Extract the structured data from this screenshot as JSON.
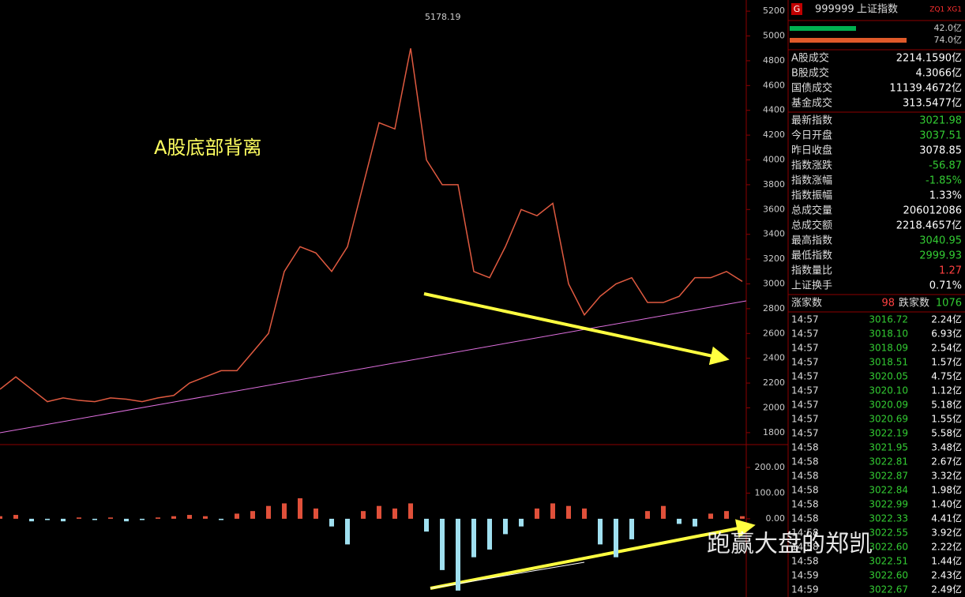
{
  "chart": {
    "annotation": "A股底部背离",
    "peak_label": "5178.19",
    "ylim": [
      1710,
      5290
    ],
    "yticks": [
      1800,
      2000,
      2200,
      2400,
      2600,
      2800,
      3000,
      3200,
      3400,
      3600,
      3800,
      4000,
      4200,
      4400,
      4600,
      4800,
      5000,
      5200
    ],
    "color": "#e05a40",
    "values": [
      2150,
      2250,
      2150,
      2050,
      2080,
      2060,
      2050,
      2080,
      2070,
      2050,
      2080,
      2100,
      2200,
      2250,
      2300,
      2300,
      2450,
      2600,
      3100,
      3300,
      3250,
      3100,
      3300,
      3800,
      4300,
      4250,
      4900,
      4000,
      3800,
      3800,
      3100,
      3050,
      3300,
      3600,
      3550,
      3650,
      3000,
      2750,
      2900,
      3000,
      3050,
      2850,
      2850,
      2900,
      3050,
      3050,
      3100,
      3020
    ]
  },
  "macd": {
    "ylim": [
      -305,
      283
    ],
    "yticks": [
      {
        "value": 0,
        "label": "0.00"
      },
      {
        "value": 100,
        "label": "100.00"
      },
      {
        "value": 200,
        "label": "200.00"
      }
    ],
    "values": [
      10,
      15,
      -10,
      -5,
      -10,
      5,
      -5,
      5,
      -10,
      -5,
      5,
      10,
      15,
      10,
      -5,
      20,
      30,
      50,
      60,
      80,
      40,
      -30,
      -100,
      30,
      50,
      40,
      60,
      -50,
      -200,
      -280,
      -150,
      -120,
      -60,
      -30,
      40,
      60,
      50,
      40,
      -100,
      -150,
      -80,
      30,
      50,
      -20,
      -30,
      20,
      30,
      10
    ]
  },
  "header": {
    "badge": "G",
    "code": "999999",
    "name": "上证指数",
    "tags": "ZQ1 XG1"
  },
  "volume_bars": [
    {
      "value": 42.0,
      "label": "42.0亿",
      "color": "#00b050"
    },
    {
      "value": 74.0,
      "label": "74.0亿",
      "color": "#e05a2a"
    }
  ],
  "turnover": [
    [
      "A股成交",
      "2214.1590亿"
    ],
    [
      "B股成交",
      "4.3066亿"
    ],
    [
      "国债成交",
      "11139.4672亿"
    ],
    [
      "基金成交",
      "313.5477亿"
    ]
  ],
  "quote": [
    {
      "label": "最新指数",
      "value": "3021.98",
      "color": "#33cc33"
    },
    {
      "label": "今日开盘",
      "value": "3037.51",
      "color": "#33cc33"
    },
    {
      "label": "昨日收盘",
      "value": "3078.85",
      "color": "#ffffff"
    },
    {
      "label": "指数涨跌",
      "value": "-56.87",
      "color": "#33cc33"
    },
    {
      "label": "指数涨幅",
      "value": "-1.85%",
      "color": "#33cc33"
    },
    {
      "label": "指数振幅",
      "value": "1.33%",
      "color": "#ffffff"
    },
    {
      "label": "总成交量",
      "value": "206012086",
      "color": "#ffffff"
    },
    {
      "label": "总成交额",
      "value": "2218.4657亿",
      "color": "#ffffff"
    },
    {
      "label": "最高指数",
      "value": "3040.95",
      "color": "#33cc33"
    },
    {
      "label": "最低指数",
      "value": "2999.93",
      "color": "#33cc33"
    },
    {
      "label": "指数量比",
      "value": "1.27",
      "color": "#ff4040"
    },
    {
      "label": "上证换手",
      "value": "0.71%",
      "color": "#ffffff"
    }
  ],
  "breadth": {
    "up_label": "涨家数",
    "up": 98,
    "down_label": "跌家数",
    "down": 1076
  },
  "trades": [
    [
      "14:57",
      "3016.72",
      "2.24亿"
    ],
    [
      "14:57",
      "3018.10",
      "6.93亿"
    ],
    [
      "14:57",
      "3018.09",
      "2.54亿"
    ],
    [
      "14:57",
      "3018.51",
      "1.57亿"
    ],
    [
      "14:57",
      "3020.05",
      "4.75亿"
    ],
    [
      "14:57",
      "3020.10",
      "1.12亿"
    ],
    [
      "14:57",
      "3020.09",
      "5.18亿"
    ],
    [
      "14:57",
      "3020.69",
      "1.55亿"
    ],
    [
      "14:57",
      "3022.19",
      "5.58亿"
    ],
    [
      "14:58",
      "3021.95",
      "3.48亿"
    ],
    [
      "14:58",
      "3022.81",
      "2.67亿"
    ],
    [
      "14:58",
      "3022.87",
      "3.32亿"
    ],
    [
      "14:58",
      "3022.84",
      "1.98亿"
    ],
    [
      "14:58",
      "3022.99",
      "1.40亿"
    ],
    [
      "14:58",
      "3022.33",
      "4.41亿"
    ],
    [
      "14:58",
      "3022.55",
      "3.92亿"
    ],
    [
      "14:58",
      "3022.60",
      "2.22亿"
    ],
    [
      "14:58",
      "3022.51",
      "1.44亿"
    ],
    [
      "14:59",
      "3022.60",
      "2.43亿"
    ],
    [
      "14:59",
      "3022.67",
      "2.49亿"
    ]
  ],
  "watermark": "跑赢大盘的郑凯"
}
